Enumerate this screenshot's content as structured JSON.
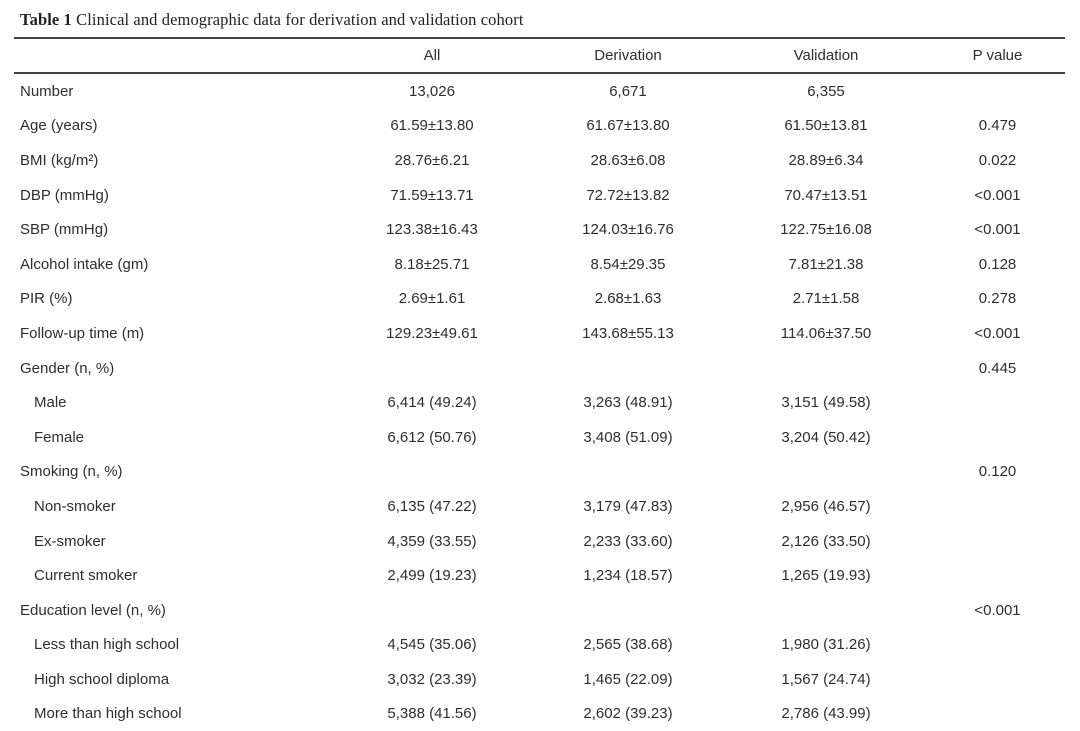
{
  "page": {
    "background": "#ffffff",
    "text_color": "#2e2e2e",
    "rule_color": "#414141"
  },
  "table": {
    "title": {
      "label": "Table 1",
      "text": "Clinical and demographic data for derivation and validation cohort"
    },
    "headers": [
      "",
      "All",
      "Derivation",
      "Validation",
      "P value"
    ],
    "rows": [
      {
        "label": "Number",
        "indent": 0,
        "values": [
          "13,026",
          "6,671",
          "6,355",
          ""
        ]
      },
      {
        "label": "Age (years)",
        "indent": 0,
        "values": [
          "61.59±13.80",
          "61.67±13.80",
          "61.50±13.81",
          "0.479"
        ]
      },
      {
        "label": "BMI (kg/m²)",
        "indent": 0,
        "values": [
          "28.76±6.21",
          "28.63±6.08",
          "28.89±6.34",
          "0.022"
        ]
      },
      {
        "label": "DBP (mmHg)",
        "indent": 0,
        "values": [
          "71.59±13.71",
          "72.72±13.82",
          "70.47±13.51",
          "<0.001"
        ]
      },
      {
        "label": "SBP (mmHg)",
        "indent": 0,
        "values": [
          "123.38±16.43",
          "124.03±16.76",
          "122.75±16.08",
          "<0.001"
        ]
      },
      {
        "label": "Alcohol intake (gm)",
        "indent": 0,
        "values": [
          "8.18±25.71",
          "8.54±29.35",
          "7.81±21.38",
          "0.128"
        ]
      },
      {
        "label": "PIR (%)",
        "indent": 0,
        "values": [
          "2.69±1.61",
          "2.68±1.63",
          "2.71±1.58",
          "0.278"
        ]
      },
      {
        "label": "Follow-up time (m)",
        "indent": 0,
        "values": [
          "129.23±49.61",
          "143.68±55.13",
          "114.06±37.50",
          "<0.001"
        ]
      },
      {
        "label": "Gender (n, %)",
        "indent": 0,
        "values": [
          "",
          "",
          "",
          "0.445"
        ]
      },
      {
        "label": "Male",
        "indent": 1,
        "values": [
          "6,414 (49.24)",
          "3,263 (48.91)",
          "3,151 (49.58)",
          ""
        ]
      },
      {
        "label": "Female",
        "indent": 1,
        "values": [
          "6,612 (50.76)",
          "3,408 (51.09)",
          "3,204 (50.42)",
          ""
        ]
      },
      {
        "label": "Smoking (n, %)",
        "indent": 0,
        "values": [
          "",
          "",
          "",
          "0.120"
        ]
      },
      {
        "label": "Non-smoker",
        "indent": 1,
        "values": [
          "6,135 (47.22)",
          "3,179 (47.83)",
          "2,956 (46.57)",
          ""
        ]
      },
      {
        "label": "Ex-smoker",
        "indent": 1,
        "values": [
          "4,359 (33.55)",
          "2,233 (33.60)",
          "2,126 (33.50)",
          ""
        ]
      },
      {
        "label": "Current smoker",
        "indent": 1,
        "values": [
          "2,499 (19.23)",
          "1,234 (18.57)",
          "1,265 (19.93)",
          ""
        ]
      },
      {
        "label": "Education level (n, %)",
        "indent": 0,
        "values": [
          "",
          "",
          "",
          "<0.001"
        ]
      },
      {
        "label": "Less than high school",
        "indent": 1,
        "values": [
          "4,545 (35.06)",
          "2,565 (38.68)",
          "1,980 (31.26)",
          ""
        ]
      },
      {
        "label": "High school diploma",
        "indent": 1,
        "values": [
          "3,032 (23.39)",
          "1,465 (22.09)",
          "1,567 (24.74)",
          ""
        ]
      },
      {
        "label": "More than high school",
        "indent": 1,
        "values": [
          "5,388 (41.56)",
          "2,602 (39.23)",
          "2,786 (43.99)",
          ""
        ]
      }
    ]
  }
}
